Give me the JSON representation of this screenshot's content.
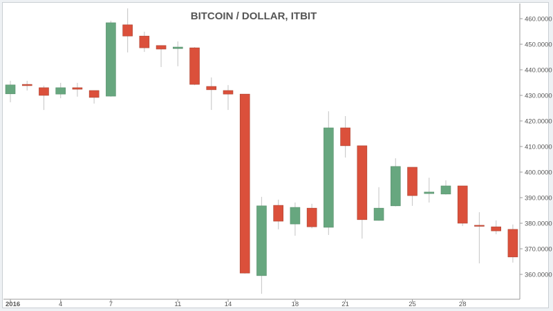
{
  "chart_data": {
    "type": "candlestick",
    "title": "BITCOIN / DOLLAR, ITBIT",
    "xlabel": "",
    "ylabel": "",
    "ylim": [
      351,
      466
    ],
    "y_ticks": [
      "360.0000",
      "370.0000",
      "380.0000",
      "390.0000",
      "400.0000",
      "410.0000",
      "420.0000",
      "430.0000",
      "440.0000",
      "450.0000",
      "460.0000"
    ],
    "y_tick_values": [
      360,
      370,
      380,
      390,
      400,
      410,
      420,
      430,
      440,
      450,
      460
    ],
    "x_ticks": [
      {
        "day": 1,
        "label": "2016"
      },
      {
        "day": 4,
        "label": "4"
      },
      {
        "day": 7,
        "label": "7"
      },
      {
        "day": 11,
        "label": "11"
      },
      {
        "day": 14,
        "label": "14"
      },
      {
        "day": 18,
        "label": "18"
      },
      {
        "day": 21,
        "label": "21"
      },
      {
        "day": 25,
        "label": "25"
      },
      {
        "day": 28,
        "label": "28"
      }
    ],
    "colors": {
      "up": "#67a77f",
      "down": "#db503b",
      "wick": "#cccccc",
      "axis": "#888888"
    },
    "series": [
      {
        "day": 1,
        "open": 430.6,
        "high": 435.7,
        "low": 427.3,
        "close": 434.1
      },
      {
        "day": 2,
        "open": 434.3,
        "high": 435.7,
        "low": 431.9,
        "close": 433.8
      },
      {
        "day": 3,
        "open": 433.0,
        "high": 433.8,
        "low": 424.3,
        "close": 430.0
      },
      {
        "day": 4,
        "open": 430.5,
        "high": 434.9,
        "low": 428.9,
        "close": 433.0
      },
      {
        "day": 5,
        "open": 433.0,
        "high": 434.9,
        "low": 429.5,
        "close": 432.4
      },
      {
        "day": 6,
        "open": 431.9,
        "high": 431.9,
        "low": 426.8,
        "close": 429.2
      },
      {
        "day": 7,
        "open": 429.7,
        "high": 459.2,
        "low": 429.5,
        "close": 458.4
      },
      {
        "day": 8,
        "open": 457.6,
        "high": 464.0,
        "low": 446.8,
        "close": 453.2
      },
      {
        "day": 9,
        "open": 453.2,
        "high": 454.9,
        "low": 447.0,
        "close": 448.6
      },
      {
        "day": 10,
        "open": 449.5,
        "high": 449.5,
        "low": 441.1,
        "close": 448.1
      },
      {
        "day": 11,
        "open": 448.3,
        "high": 451.1,
        "low": 441.4,
        "close": 448.9
      },
      {
        "day": 12,
        "open": 448.6,
        "high": 448.9,
        "low": 434.0,
        "close": 434.3
      },
      {
        "day": 13,
        "open": 433.5,
        "high": 437.0,
        "low": 424.3,
        "close": 432.2
      },
      {
        "day": 14,
        "open": 431.9,
        "high": 434.0,
        "low": 424.3,
        "close": 430.5
      },
      {
        "day": 15,
        "open": 430.5,
        "high": 430.5,
        "low": 360.3,
        "close": 360.5
      },
      {
        "day": 16,
        "open": 359.5,
        "high": 390.3,
        "low": 352.4,
        "close": 386.8
      },
      {
        "day": 17,
        "open": 387.0,
        "high": 389.2,
        "low": 377.6,
        "close": 380.8
      },
      {
        "day": 18,
        "open": 379.7,
        "high": 388.1,
        "low": 375.1,
        "close": 386.2
      },
      {
        "day": 19,
        "open": 385.9,
        "high": 387.6,
        "low": 378.0,
        "close": 378.6
      },
      {
        "day": 20,
        "open": 378.4,
        "high": 423.8,
        "low": 375.4,
        "close": 417.3
      },
      {
        "day": 21,
        "open": 417.3,
        "high": 421.9,
        "low": 405.7,
        "close": 410.3
      },
      {
        "day": 22,
        "open": 410.3,
        "high": 410.3,
        "low": 374.0,
        "close": 381.4
      },
      {
        "day": 23,
        "open": 381.1,
        "high": 394.1,
        "low": 381.0,
        "close": 385.9
      },
      {
        "day": 24,
        "open": 386.8,
        "high": 405.4,
        "low": 386.6,
        "close": 402.2
      },
      {
        "day": 25,
        "open": 401.9,
        "high": 401.9,
        "low": 386.8,
        "close": 390.8
      },
      {
        "day": 26,
        "open": 391.6,
        "high": 397.8,
        "low": 388.1,
        "close": 392.2
      },
      {
        "day": 27,
        "open": 391.4,
        "high": 396.8,
        "low": 391.2,
        "close": 394.6
      },
      {
        "day": 28,
        "open": 394.6,
        "high": 394.6,
        "low": 378.9,
        "close": 380.0
      },
      {
        "day": 29,
        "open": 379.2,
        "high": 384.3,
        "low": 364.3,
        "close": 379.1
      },
      {
        "day": 30,
        "open": 378.6,
        "high": 381.1,
        "low": 375.7,
        "close": 377.0
      },
      {
        "day": 31,
        "open": 377.6,
        "high": 379.5,
        "low": 364.6,
        "close": 366.8
      }
    ]
  }
}
